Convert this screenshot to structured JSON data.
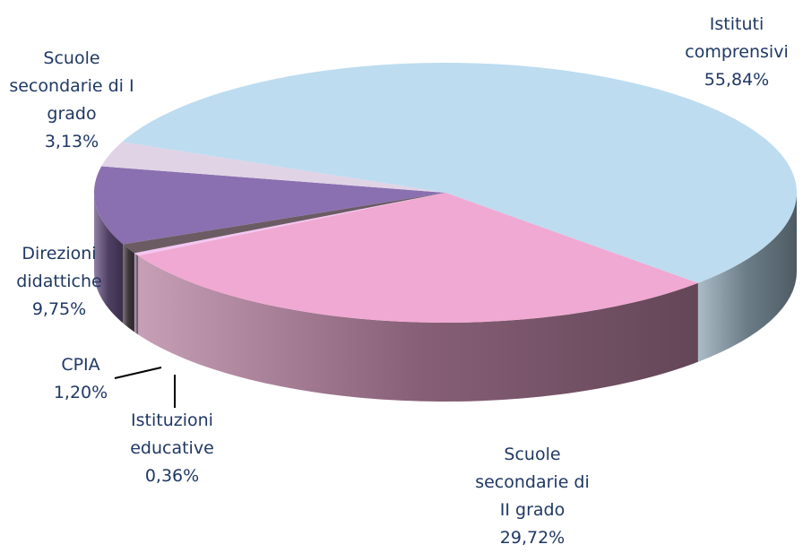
{
  "chart_data": {
    "type": "pie",
    "categories": [
      "Istituti comprensivi",
      "Scuole secondarie di II grado",
      "Istituzioni educative",
      "CPIA",
      "Direzioni didattiche",
      "Scuole secondarie di I grado"
    ],
    "values": [
      55.84,
      29.72,
      0.36,
      1.2,
      9.75,
      3.13
    ],
    "value_labels": [
      "55,84%",
      "29,72%",
      "0,36%",
      "1,20%",
      "9,75%",
      "3,13%"
    ],
    "colors": [
      "#bddcf0",
      "#f0a9d2",
      "#f3c6f3",
      "#6b5c64",
      "#8a70b0",
      "#e0d3e6"
    ]
  }
}
